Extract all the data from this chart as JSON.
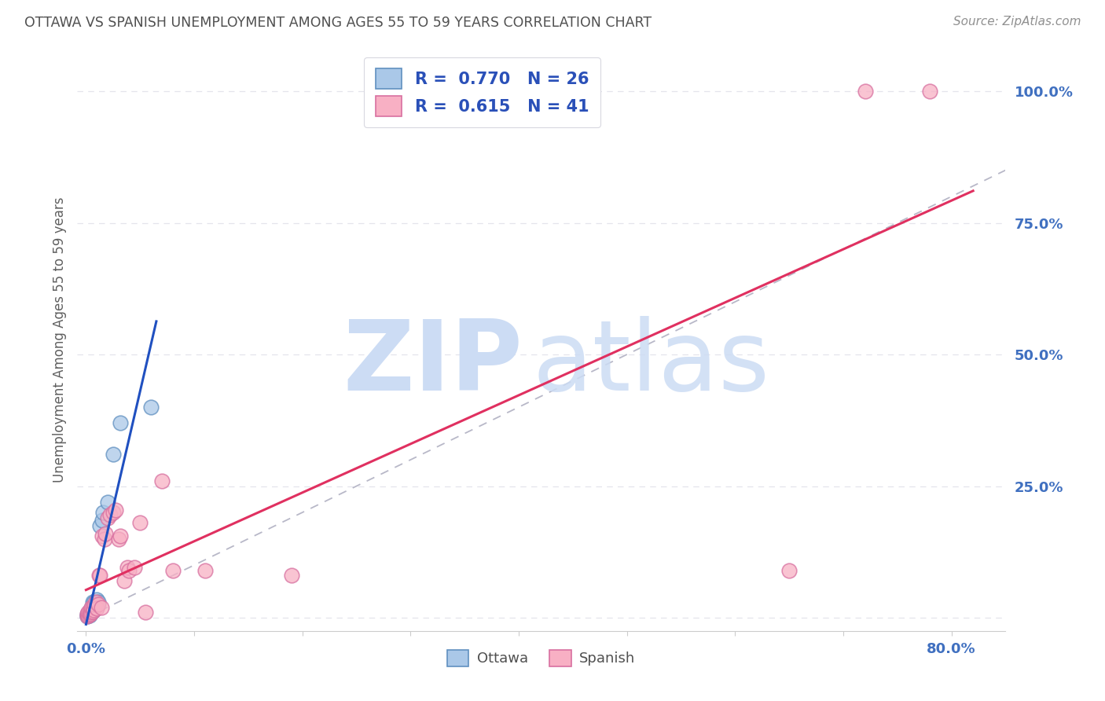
{
  "title": "OTTAWA VS SPANISH UNEMPLOYMENT AMONG AGES 55 TO 59 YEARS CORRELATION CHART",
  "source": "Source: ZipAtlas.com",
  "ylabel": "Unemployment Among Ages 55 to 59 years",
  "xlim": [
    -0.008,
    0.85
  ],
  "ylim": [
    -0.025,
    1.08
  ],
  "ottawa_R": 0.77,
  "ottawa_N": 26,
  "spanish_R": 0.615,
  "spanish_N": 41,
  "ottawa_dot_color": "#aac8e8",
  "ottawa_edge_color": "#6090c0",
  "spanish_dot_color": "#f8b0c4",
  "spanish_edge_color": "#d870a0",
  "ottawa_line_color": "#2050c0",
  "spanish_line_color": "#e03060",
  "diagonal_color": "#b8b8c8",
  "legend_label_ottawa": "Ottawa",
  "legend_label_spanish": "Spanish",
  "watermark_color": "#ccdcf4",
  "background_color": "#ffffff",
  "title_color": "#505050",
  "source_color": "#909090",
  "tick_color": "#4070c0",
  "grid_color": "#e4e4ec",
  "x_ticks": [
    0.0,
    0.1,
    0.2,
    0.3,
    0.4,
    0.5,
    0.6,
    0.7,
    0.8
  ],
  "y_ticks": [
    0.0,
    0.25,
    0.5,
    0.75,
    1.0
  ],
  "ottawa_x": [
    0.001,
    0.001,
    0.002,
    0.002,
    0.003,
    0.003,
    0.004,
    0.004,
    0.005,
    0.005,
    0.006,
    0.006,
    0.006,
    0.007,
    0.007,
    0.008,
    0.009,
    0.01,
    0.011,
    0.013,
    0.015,
    0.016,
    0.02,
    0.025,
    0.032,
    0.06
  ],
  "ottawa_y": [
    0.003,
    0.006,
    0.004,
    0.008,
    0.005,
    0.012,
    0.008,
    0.015,
    0.01,
    0.018,
    0.012,
    0.018,
    0.03,
    0.015,
    0.028,
    0.02,
    0.025,
    0.035,
    0.03,
    0.175,
    0.185,
    0.2,
    0.22,
    0.31,
    0.37,
    0.4
  ],
  "spanish_x": [
    0.001,
    0.001,
    0.002,
    0.002,
    0.003,
    0.003,
    0.004,
    0.005,
    0.005,
    0.006,
    0.006,
    0.007,
    0.008,
    0.009,
    0.01,
    0.011,
    0.012,
    0.013,
    0.014,
    0.015,
    0.017,
    0.018,
    0.02,
    0.022,
    0.025,
    0.027,
    0.03,
    0.032,
    0.035,
    0.038,
    0.04,
    0.045,
    0.05,
    0.055,
    0.07,
    0.08,
    0.11,
    0.19,
    0.65,
    0.72,
    0.78
  ],
  "spanish_y": [
    0.003,
    0.008,
    0.005,
    0.01,
    0.006,
    0.01,
    0.008,
    0.01,
    0.02,
    0.012,
    0.02,
    0.015,
    0.025,
    0.03,
    0.018,
    0.025,
    0.08,
    0.08,
    0.02,
    0.155,
    0.15,
    0.16,
    0.19,
    0.195,
    0.2,
    0.205,
    0.15,
    0.155,
    0.07,
    0.095,
    0.09,
    0.095,
    0.18,
    0.01,
    0.26,
    0.09,
    0.09,
    0.08,
    0.09,
    1.0,
    1.0
  ]
}
